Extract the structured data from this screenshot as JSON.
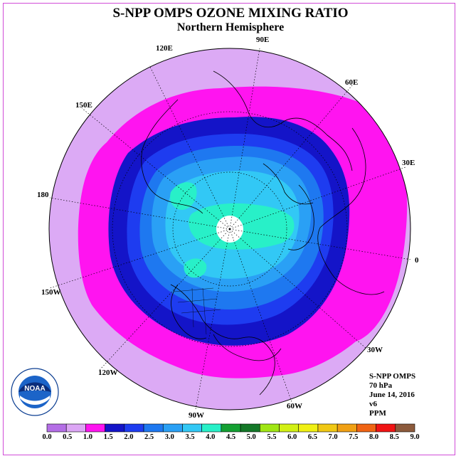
{
  "header": {
    "title": "S-NPP OMPS OZONE MIXING RATIO",
    "subtitle": "Northern Hemisphere"
  },
  "longitude_labels": {
    "e90": "90E",
    "e120": "120E",
    "e60": "60E",
    "e150": "150E",
    "e30": "30E",
    "d180": "180",
    "d0": "0",
    "w150": "150W",
    "w30": "30W",
    "w120": "120W",
    "w60": "60W",
    "w90": "90W"
  },
  "info": {
    "instrument": "S-NPP OMPS",
    "level": "70 hPa",
    "date": "June 14, 2016",
    "version": "v6",
    "units": "PPM"
  },
  "colorbar": {
    "labels": [
      "0.0",
      "0.5",
      "1.0",
      "1.5",
      "2.0",
      "2.5",
      "3.0",
      "3.5",
      "4.0",
      "4.5",
      "5.0",
      "5.5",
      "6.0",
      "6.5",
      "7.0",
      "7.5",
      "8.0",
      "8.5",
      "9.0"
    ],
    "colors": [
      "#b46ee6",
      "#dca6f5",
      "#ff14f0",
      "#1414c8",
      "#1e3cf0",
      "#1e78f0",
      "#2aa0f5",
      "#32c8f5",
      "#28f0c8",
      "#14a032",
      "#147828",
      "#a0e614",
      "#d2f014",
      "#f0f014",
      "#f0c814",
      "#f0a014",
      "#f06414",
      "#f01414",
      "#8c5a3c"
    ]
  },
  "legend_colors": {
    "outer_region": "#dcaaf5",
    "band_1_0_1_5": "#ff14f0",
    "band_1_5_2_0": "#1414c8",
    "band_2_0_2_5": "#1e3cf0",
    "band_2_5_3_0": "#1e78f0",
    "band_3_0_3_5": "#2aa0f5",
    "band_3_5_4_0": "#32c8f5",
    "band_4_0_4_5": "#28f0c8"
  },
  "logo": {
    "name": "noaa-logo",
    "text": "NOAA",
    "ring_text": "NATIONAL OCEANIC AND ATMOSPHERIC ADMINISTRATION · U.S. DEPARTMENT OF COMMERCE"
  }
}
